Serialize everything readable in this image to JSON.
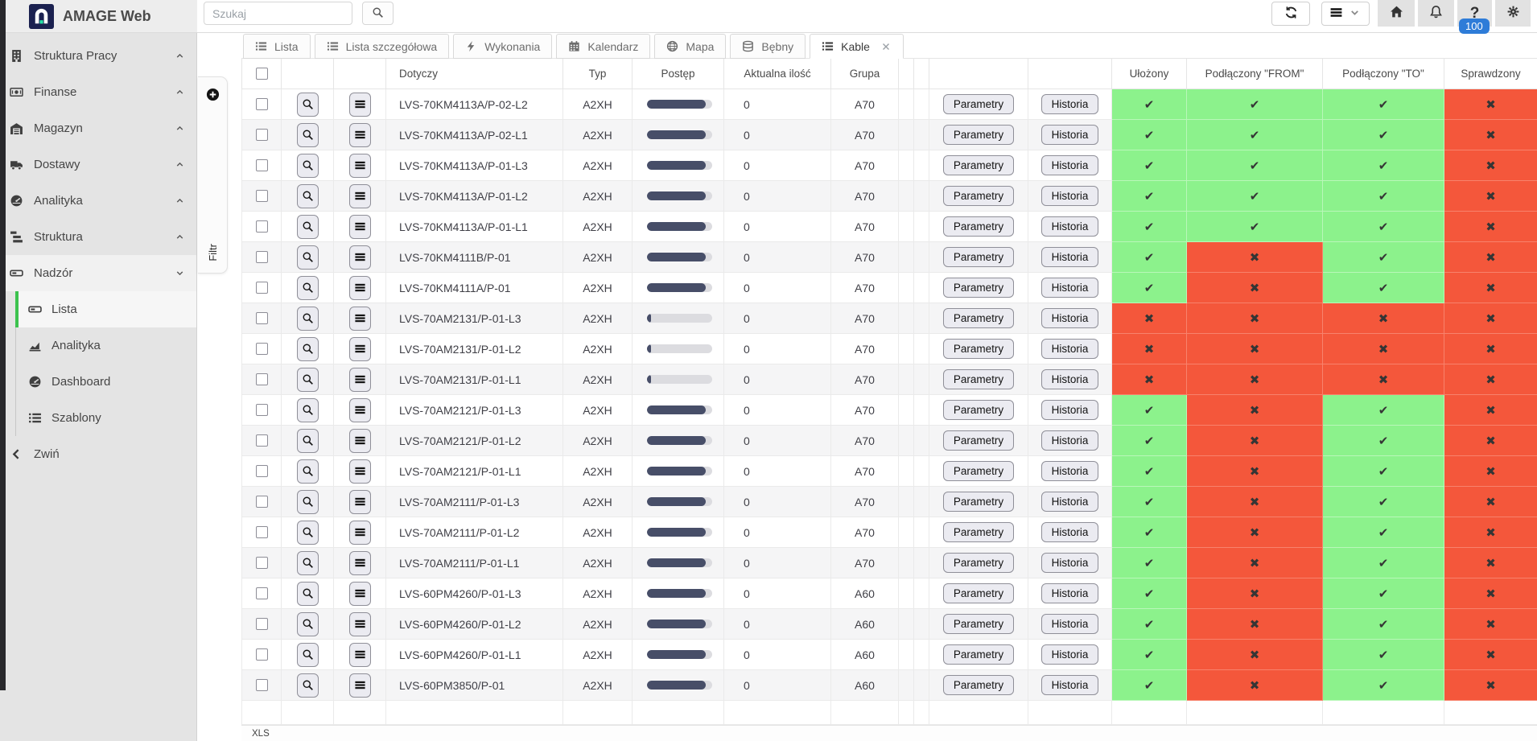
{
  "topbar": {
    "logo_text": "AMAGE Web",
    "search_placeholder": "Szukaj",
    "badge_count": "100",
    "icons": [
      "refresh-icon",
      "menu-icon",
      "home-icon",
      "bell-icon",
      "help-icon",
      "gear-icon"
    ]
  },
  "sidebar": {
    "items": [
      {
        "label": "Struktura Pracy",
        "icon": "building",
        "chevron": "up"
      },
      {
        "label": "Finanse",
        "icon": "banknote",
        "chevron": "up"
      },
      {
        "label": "Magazyn",
        "icon": "warehouse",
        "chevron": "up"
      },
      {
        "label": "Dostawy",
        "icon": "truck",
        "chevron": "up"
      },
      {
        "label": "Analityka",
        "icon": "gauge",
        "chevron": "up"
      },
      {
        "label": "Struktura",
        "icon": "hierarchy",
        "chevron": "up"
      },
      {
        "label": "Nadzór",
        "icon": "card",
        "chevron": "down",
        "expanded": true
      }
    ],
    "subitems": [
      {
        "label": "Lista",
        "icon": "card",
        "active": true
      },
      {
        "label": "Analityka",
        "icon": "chart"
      },
      {
        "label": "Dashboard",
        "icon": "gauge"
      },
      {
        "label": "Szablony",
        "icon": "list"
      }
    ],
    "collapse_label": "Zwiń"
  },
  "filter_drawer": {
    "label": "Filtr",
    "icon": "plus-circle"
  },
  "tabs": [
    {
      "label": "Lista",
      "icon": "list"
    },
    {
      "label": "Lista szczegółowa",
      "icon": "list"
    },
    {
      "label": "Wykonania",
      "icon": "bolt"
    },
    {
      "label": "Kalendarz",
      "icon": "calendar"
    },
    {
      "label": "Mapa",
      "icon": "globe"
    },
    {
      "label": "Bębny",
      "icon": "drum"
    },
    {
      "label": "Kable",
      "icon": "list",
      "active": true,
      "closable": true
    }
  ],
  "table": {
    "columns": [
      "",
      "",
      "",
      "Dotyczy",
      "Typ",
      "Postęp",
      "Aktualna ilość",
      "Grupa",
      "",
      "",
      "",
      "",
      "Ułożony",
      "Podłączony \"FROM\"",
      "Podłączony \"TO\"",
      "Sprawdzony"
    ],
    "row_buttons": {
      "parametry": "Parametry",
      "historia": "Historia"
    },
    "glyphs": {
      "check": "✔",
      "cross": "✖"
    },
    "status_colors": {
      "ok": "#8cf28c",
      "bad": "#f4573b"
    },
    "progress_color": "#474e68",
    "rows": [
      {
        "dotyczy": "LVS-70KM4113A/P-02-L2",
        "typ": "A2XH",
        "postep_percent": 90,
        "aktualna_ilosc": "0",
        "grupa": "A70",
        "ulozony": true,
        "podlaczony_from": true,
        "podlaczony_to": true,
        "sprawdzony": false
      },
      {
        "dotyczy": "LVS-70KM4113A/P-02-L1",
        "typ": "A2XH",
        "postep_percent": 90,
        "aktualna_ilosc": "0",
        "grupa": "A70",
        "ulozony": true,
        "podlaczony_from": true,
        "podlaczony_to": true,
        "sprawdzony": false
      },
      {
        "dotyczy": "LVS-70KM4113A/P-01-L3",
        "typ": "A2XH",
        "postep_percent": 90,
        "aktualna_ilosc": "0",
        "grupa": "A70",
        "ulozony": true,
        "podlaczony_from": true,
        "podlaczony_to": true,
        "sprawdzony": false
      },
      {
        "dotyczy": "LVS-70KM4113A/P-01-L2",
        "typ": "A2XH",
        "postep_percent": 90,
        "aktualna_ilosc": "0",
        "grupa": "A70",
        "ulozony": true,
        "podlaczony_from": true,
        "podlaczony_to": true,
        "sprawdzony": false
      },
      {
        "dotyczy": "LVS-70KM4113A/P-01-L1",
        "typ": "A2XH",
        "postep_percent": 90,
        "aktualna_ilosc": "0",
        "grupa": "A70",
        "ulozony": true,
        "podlaczony_from": true,
        "podlaczony_to": true,
        "sprawdzony": false
      },
      {
        "dotyczy": "LVS-70KM4111B/P-01",
        "typ": "A2XH",
        "postep_percent": 90,
        "aktualna_ilosc": "0",
        "grupa": "A70",
        "ulozony": true,
        "podlaczony_from": false,
        "podlaczony_to": true,
        "sprawdzony": false
      },
      {
        "dotyczy": "LVS-70KM4111A/P-01",
        "typ": "A2XH",
        "postep_percent": 90,
        "aktualna_ilosc": "0",
        "grupa": "A70",
        "ulozony": true,
        "podlaczony_from": false,
        "podlaczony_to": true,
        "sprawdzony": false
      },
      {
        "dotyczy": "LVS-70AM2131/P-01-L3",
        "typ": "A2XH",
        "postep_percent": 6,
        "aktualna_ilosc": "0",
        "grupa": "A70",
        "ulozony": false,
        "podlaczony_from": false,
        "podlaczony_to": false,
        "sprawdzony": false
      },
      {
        "dotyczy": "LVS-70AM2131/P-01-L2",
        "typ": "A2XH",
        "postep_percent": 6,
        "aktualna_ilosc": "0",
        "grupa": "A70",
        "ulozony": false,
        "podlaczony_from": false,
        "podlaczony_to": false,
        "sprawdzony": false
      },
      {
        "dotyczy": "LVS-70AM2131/P-01-L1",
        "typ": "A2XH",
        "postep_percent": 6,
        "aktualna_ilosc": "0",
        "grupa": "A70",
        "ulozony": false,
        "podlaczony_from": false,
        "podlaczony_to": false,
        "sprawdzony": false
      },
      {
        "dotyczy": "LVS-70AM2121/P-01-L3",
        "typ": "A2XH",
        "postep_percent": 90,
        "aktualna_ilosc": "0",
        "grupa": "A70",
        "ulozony": true,
        "podlaczony_from": false,
        "podlaczony_to": true,
        "sprawdzony": false
      },
      {
        "dotyczy": "LVS-70AM2121/P-01-L2",
        "typ": "A2XH",
        "postep_percent": 90,
        "aktualna_ilosc": "0",
        "grupa": "A70",
        "ulozony": true,
        "podlaczony_from": false,
        "podlaczony_to": true,
        "sprawdzony": false
      },
      {
        "dotyczy": "LVS-70AM2121/P-01-L1",
        "typ": "A2XH",
        "postep_percent": 90,
        "aktualna_ilosc": "0",
        "grupa": "A70",
        "ulozony": true,
        "podlaczony_from": false,
        "podlaczony_to": true,
        "sprawdzony": false
      },
      {
        "dotyczy": "LVS-70AM2111/P-01-L3",
        "typ": "A2XH",
        "postep_percent": 90,
        "aktualna_ilosc": "0",
        "grupa": "A70",
        "ulozony": true,
        "podlaczony_from": false,
        "podlaczony_to": true,
        "sprawdzony": false
      },
      {
        "dotyczy": "LVS-70AM2111/P-01-L2",
        "typ": "A2XH",
        "postep_percent": 90,
        "aktualna_ilosc": "0",
        "grupa": "A70",
        "ulozony": true,
        "podlaczony_from": false,
        "podlaczony_to": true,
        "sprawdzony": false
      },
      {
        "dotyczy": "LVS-70AM2111/P-01-L1",
        "typ": "A2XH",
        "postep_percent": 90,
        "aktualna_ilosc": "0",
        "grupa": "A70",
        "ulozony": true,
        "podlaczony_from": false,
        "podlaczony_to": true,
        "sprawdzony": false
      },
      {
        "dotyczy": "LVS-60PM4260/P-01-L3",
        "typ": "A2XH",
        "postep_percent": 90,
        "aktualna_ilosc": "0",
        "grupa": "A60",
        "ulozony": true,
        "podlaczony_from": false,
        "podlaczony_to": true,
        "sprawdzony": false
      },
      {
        "dotyczy": "LVS-60PM4260/P-01-L2",
        "typ": "A2XH",
        "postep_percent": 90,
        "aktualna_ilosc": "0",
        "grupa": "A60",
        "ulozony": true,
        "podlaczony_from": false,
        "podlaczony_to": true,
        "sprawdzony": false
      },
      {
        "dotyczy": "LVS-60PM4260/P-01-L1",
        "typ": "A2XH",
        "postep_percent": 90,
        "aktualna_ilosc": "0",
        "grupa": "A60",
        "ulozony": true,
        "podlaczony_from": false,
        "podlaczony_to": true,
        "sprawdzony": false
      },
      {
        "dotyczy": "LVS-60PM3850/P-01",
        "typ": "A2XH",
        "postep_percent": 90,
        "aktualna_ilosc": "0",
        "grupa": "A60",
        "ulozony": true,
        "podlaczony_from": false,
        "podlaczony_to": true,
        "sprawdzony": false
      }
    ]
  },
  "footer": {
    "export_label": "XLS"
  },
  "colors": {
    "accent_green": "#3cc24e",
    "badge_blue": "#2e7cd8",
    "logo_navy": "#1b2150",
    "logo_teal": "#27e0a6"
  }
}
